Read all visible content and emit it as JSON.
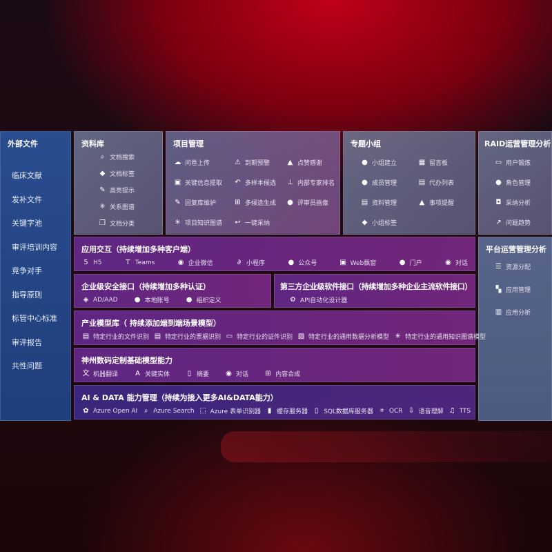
{
  "left": {
    "title": "外部文件",
    "items": [
      "临床文献",
      "发补文件",
      "关键字池",
      "审评培训内容",
      "竞争对手",
      "指导原则",
      "标管中心标准",
      "审评报告",
      "共性问题"
    ]
  },
  "library": {
    "title": "资料库",
    "items": [
      {
        "icon": "doc-search",
        "label": "文档搜索"
      },
      {
        "icon": "tag",
        "label": "文档标签"
      },
      {
        "icon": "pen",
        "label": "高亮提示"
      },
      {
        "icon": "graph",
        "label": "关系图谱"
      },
      {
        "icon": "docs",
        "label": "文档分类"
      }
    ]
  },
  "project": {
    "title": "项目管理",
    "col1": [
      {
        "icon": "cloud-upload",
        "label": "问卷上传"
      },
      {
        "icon": "window",
        "label": "关键信息提取"
      },
      {
        "icon": "edit",
        "label": "回复库维护"
      },
      {
        "icon": "graph",
        "label": "项目知识图谱"
      }
    ],
    "col2": [
      {
        "icon": "alarm",
        "label": "到期预警"
      },
      {
        "icon": "reply-all",
        "label": "多样本候选"
      },
      {
        "icon": "puzzle",
        "label": "多候选生成"
      },
      {
        "icon": "reply",
        "label": "一键采纳"
      }
    ],
    "col3": [
      {
        "icon": "thumbs-up",
        "label": "点赞感谢"
      },
      {
        "icon": "rank",
        "label": "内部专家排名"
      },
      {
        "icon": "person",
        "label": "评审员画像"
      }
    ]
  },
  "group": {
    "title": "专题小组",
    "col1": [
      {
        "icon": "users",
        "label": "小组建立"
      },
      {
        "icon": "user-add",
        "label": "成员管理"
      },
      {
        "icon": "folder",
        "label": "资料管理"
      },
      {
        "icon": "tag",
        "label": "小组标签"
      }
    ],
    "col2": [
      {
        "icon": "bbs",
        "label": "留言板"
      },
      {
        "icon": "clipboard",
        "label": "代办列表"
      },
      {
        "icon": "bell",
        "label": "事项提醒"
      }
    ]
  },
  "raid": {
    "title": "RAID运营管理分析",
    "items": [
      {
        "icon": "id-card",
        "label": "用户锻炼"
      },
      {
        "icon": "users",
        "label": "角色管理"
      },
      {
        "icon": "qa",
        "label": "采纳分析"
      },
      {
        "icon": "trend",
        "label": "问题趋势"
      }
    ]
  },
  "platform": {
    "title": "平台运营管理分析",
    "items": [
      {
        "icon": "list",
        "label": "资源分配"
      },
      {
        "icon": "apps",
        "label": "应用管理"
      },
      {
        "icon": "chart",
        "label": "应用分析"
      }
    ]
  },
  "app": {
    "title": "应用交互（持续增加多种客户端）",
    "items": [
      {
        "icon": "html5",
        "label": "H5"
      },
      {
        "icon": "teams",
        "label": "Teams"
      },
      {
        "icon": "wechat",
        "label": "企业微信"
      },
      {
        "icon": "miniapp",
        "label": "小程序"
      },
      {
        "icon": "users",
        "label": "公众号"
      },
      {
        "icon": "window",
        "label": "Web飘窗"
      },
      {
        "icon": "portal",
        "label": "门户"
      },
      {
        "icon": "chat",
        "label": "对话"
      }
    ]
  },
  "security": {
    "title": "企业级安全接口（持续增加多种认证）",
    "items": [
      {
        "icon": "diamond",
        "label": "AD/AAD"
      },
      {
        "icon": "user",
        "label": "本地账号"
      },
      {
        "icon": "org",
        "label": "组织定义"
      }
    ]
  },
  "thirdparty": {
    "title": "第三方企业级软件接口（持续增加多种企业主流软件接口）",
    "items": [
      {
        "icon": "gear",
        "label": "API自动化设计器"
      }
    ]
  },
  "industry": {
    "title": "产业模型库（ 持续添加端到端场景模型）",
    "items": [
      {
        "icon": "file",
        "label": "特定行业的文件识别"
      },
      {
        "icon": "receipt",
        "label": "特定行业的票据识别"
      },
      {
        "icon": "id-card",
        "label": "特定行业的证件识别"
      },
      {
        "icon": "image",
        "label": "特定行业的通用数据分析模型"
      },
      {
        "icon": "graph",
        "label": "特定行业的通用知识图谱模型"
      }
    ]
  },
  "base": {
    "title": "神州数码定制基础模型能力",
    "items": [
      {
        "icon": "translate",
        "label": "机器翻译"
      },
      {
        "icon": "shield-a",
        "label": "关键实体"
      },
      {
        "icon": "doc",
        "label": "摘要"
      },
      {
        "icon": "chat",
        "label": "对话"
      },
      {
        "icon": "puzzle",
        "label": "内容合成"
      }
    ]
  },
  "ai": {
    "title": "AI & DATA 能力管理（持续为接入更多AI&DATA能力）",
    "items": [
      {
        "icon": "openai",
        "label": "Azure Open AI"
      },
      {
        "icon": "search-doc",
        "label": "Azure Search"
      },
      {
        "icon": "form",
        "label": "Azure 表单识别器"
      },
      {
        "icon": "cache",
        "label": "缓存服务器"
      },
      {
        "icon": "sql",
        "label": "SQL数据库服务器"
      },
      {
        "icon": "ocr",
        "label": "OCR"
      },
      {
        "icon": "speech",
        "label": "语音理解"
      },
      {
        "icon": "tts",
        "label": "TTS"
      }
    ]
  }
}
